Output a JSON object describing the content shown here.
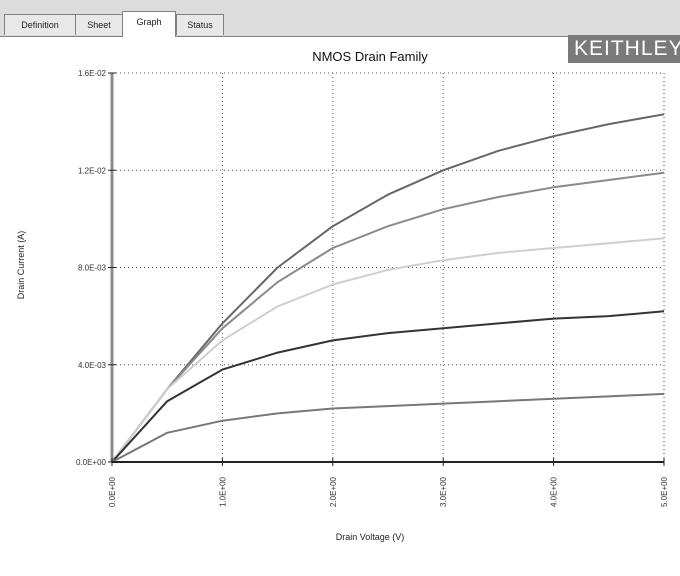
{
  "tabs": [
    {
      "label": "Definition",
      "active": false
    },
    {
      "label": "Sheet",
      "active": false
    },
    {
      "label": "Graph",
      "active": true
    },
    {
      "label": "Status",
      "active": false
    }
  ],
  "logo_text": "KEITHLEY",
  "colors": {
    "axis": "#8c8c8c",
    "grid": "#555555",
    "series": [
      "#666666",
      "#8a8a8a",
      "#cfcfcf",
      "#333333",
      "#777777"
    ]
  },
  "chart_data": {
    "type": "line",
    "title": "NMOS Drain Family",
    "xlabel": "Drain Voltage (V)",
    "ylabel": "Drain Current (A)",
    "xlim": [
      0,
      5
    ],
    "ylim": [
      0,
      0.016
    ],
    "x_tick_labels": [
      "0.0E+00",
      "1.0E+00",
      "2.0E+00",
      "3.0E+00",
      "4.0E+00",
      "5.0E+00"
    ],
    "y_tick_labels": [
      "0.0E+00",
      "4.0E-03",
      "8.0E-03",
      "1.2E-02",
      "1.6E-02"
    ],
    "grid": true,
    "series": [
      {
        "x": [
          0,
          0.5,
          1,
          1.5,
          2,
          2.5,
          3,
          3.5,
          4,
          4.5,
          5
        ],
        "values": [
          0,
          0.003,
          0.0057,
          0.008,
          0.0097,
          0.011,
          0.012,
          0.0128,
          0.0134,
          0.0139,
          0.0143
        ]
      },
      {
        "x": [
          0,
          0.5,
          1,
          1.5,
          2,
          2.5,
          3,
          3.5,
          4,
          4.5,
          5
        ],
        "values": [
          0,
          0.003,
          0.0055,
          0.0074,
          0.0088,
          0.0097,
          0.0104,
          0.0109,
          0.0113,
          0.0116,
          0.0119
        ]
      },
      {
        "x": [
          0,
          0.5,
          1,
          1.5,
          2,
          2.5,
          3,
          3.5,
          4,
          4.5,
          5
        ],
        "values": [
          0,
          0.003,
          0.005,
          0.0064,
          0.0073,
          0.0079,
          0.0083,
          0.0086,
          0.0088,
          0.009,
          0.0092
        ]
      },
      {
        "x": [
          0,
          0.5,
          1,
          1.5,
          2,
          2.5,
          3,
          3.5,
          4,
          4.5,
          5
        ],
        "values": [
          0,
          0.0025,
          0.0038,
          0.0045,
          0.005,
          0.0053,
          0.0055,
          0.0057,
          0.0059,
          0.006,
          0.0062
        ]
      },
      {
        "x": [
          0,
          0.5,
          1,
          1.5,
          2,
          2.5,
          3,
          3.5,
          4,
          4.5,
          5
        ],
        "values": [
          0,
          0.0012,
          0.0017,
          0.002,
          0.0022,
          0.0023,
          0.0024,
          0.0025,
          0.0026,
          0.0027,
          0.0028
        ]
      }
    ]
  }
}
